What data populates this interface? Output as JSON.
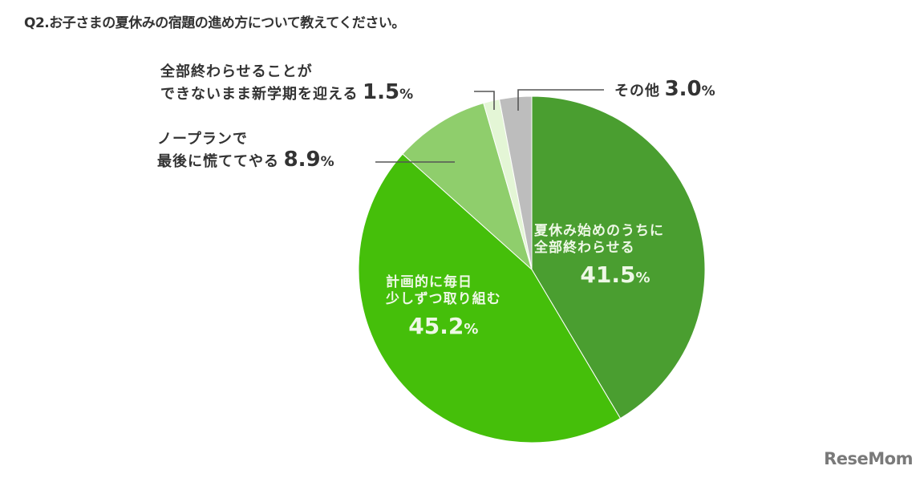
{
  "title": "Q2.お子さまの夏休みの宿題の進め方について教えてください。",
  "chart_data": {
    "type": "pie",
    "title": "Q2.お子さまの夏休みの宿題の進め方について教えてください。",
    "start_angle": "12 o'clock, clockwise",
    "slices": [
      {
        "label": "夏休み始めのうちに全部終わらせる",
        "value": 41.5,
        "color": "#4a9e30"
      },
      {
        "label": "計画的に毎日少しずつ取り組む",
        "value": 45.2,
        "color": "#45bf0a"
      },
      {
        "label": "ノープランで最後に慌ててやる",
        "value": 8.9,
        "color": "#8fce6c"
      },
      {
        "label": "全部終わらせることができないまま新学期を迎える",
        "value": 1.5,
        "color": "#e4f6d6"
      },
      {
        "label": "その他",
        "value": 3.0,
        "color": "#bdbdbd"
      }
    ],
    "unit": "%"
  },
  "labels": {
    "s0": {
      "line1": "夏休み始めのうちに",
      "line2": "全部終わらせる",
      "num": "41.5",
      "pct": "%"
    },
    "s1": {
      "line1": "計画的に毎日",
      "line2": "少しずつ取り組む",
      "num": "45.2",
      "pct": "%"
    },
    "s2": {
      "line1": "ノープランで",
      "line2": "最後に慌ててやる",
      "num": "8.9",
      "pct": "%"
    },
    "s3": {
      "line1": "全部終わらせることが",
      "line2": "できないまま新学期を迎える",
      "num": "1.5",
      "pct": "%"
    },
    "s4": {
      "line1": "その他",
      "num": "3.0",
      "pct": "%"
    }
  },
  "watermark": "ReseMom"
}
